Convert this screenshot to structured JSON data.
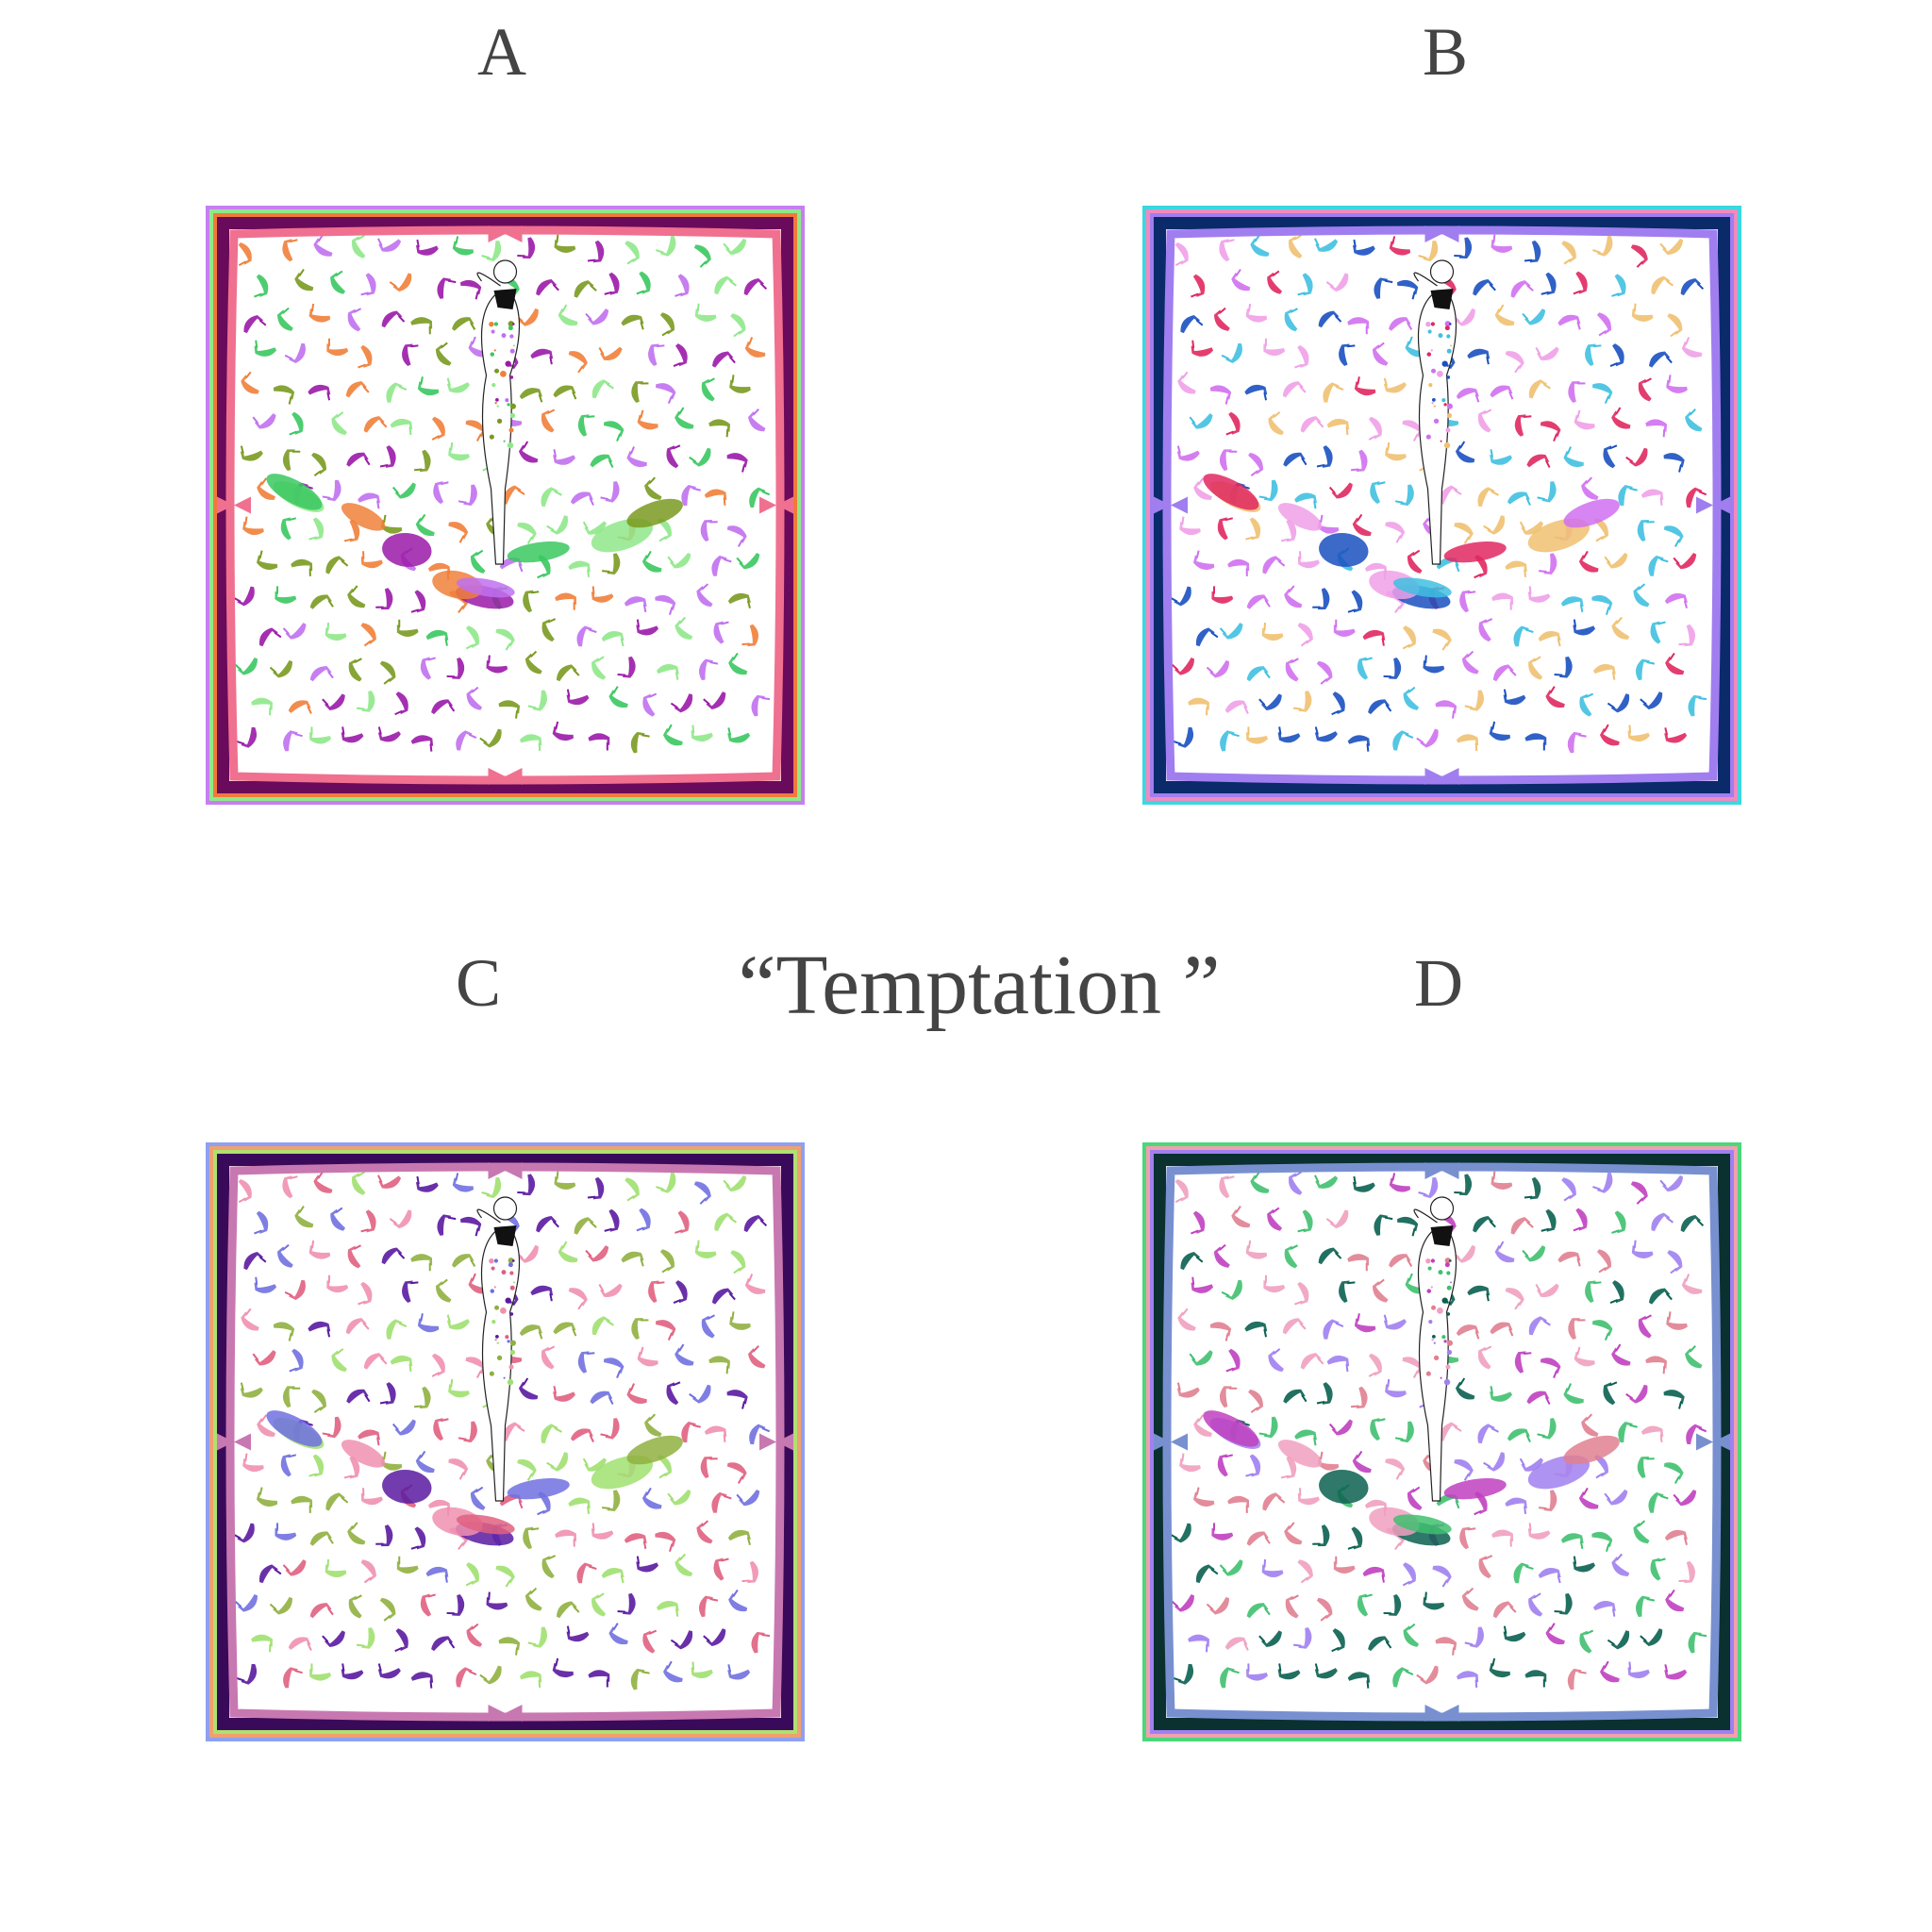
{
  "title": "“Temptation ”",
  "variants": [
    {
      "label": "A",
      "borders": [
        "#c77ef0",
        "#8fe88a",
        "#f07a3a",
        "#6a0a5a"
      ],
      "ribbon": "#f07090",
      "palette": [
        "#9a1aa8",
        "#f0803a",
        "#8fe88a",
        "#3ac860",
        "#c070f0",
        "#7a9a20"
      ]
    },
    {
      "label": "B",
      "borders": [
        "#3ad8e0",
        "#f08ac0",
        "#a07ef0",
        "#0a2a6a"
      ],
      "ribbon": "#a07ef0",
      "palette": [
        "#1a50c0",
        "#f0a0e8",
        "#f0c070",
        "#e02860",
        "#40c0e0",
        "#d070f0"
      ]
    },
    {
      "label": "C",
      "borders": [
        "#8ea0f0",
        "#f0a070",
        "#b0e070",
        "#3a0a5a"
      ],
      "ribbon": "#c878b0",
      "palette": [
        "#5a1aa0",
        "#f090b0",
        "#a0e070",
        "#7070e0",
        "#e06080",
        "#90b040"
      ]
    },
    {
      "label": "D",
      "borders": [
        "#4ad87a",
        "#f0a0b0",
        "#a080f0",
        "#0a3030"
      ],
      "ribbon": "#7890d0",
      "palette": [
        "#0a6050",
        "#f0a0c0",
        "#a080f0",
        "#c040c0",
        "#40c070",
        "#e08090"
      ]
    }
  ]
}
